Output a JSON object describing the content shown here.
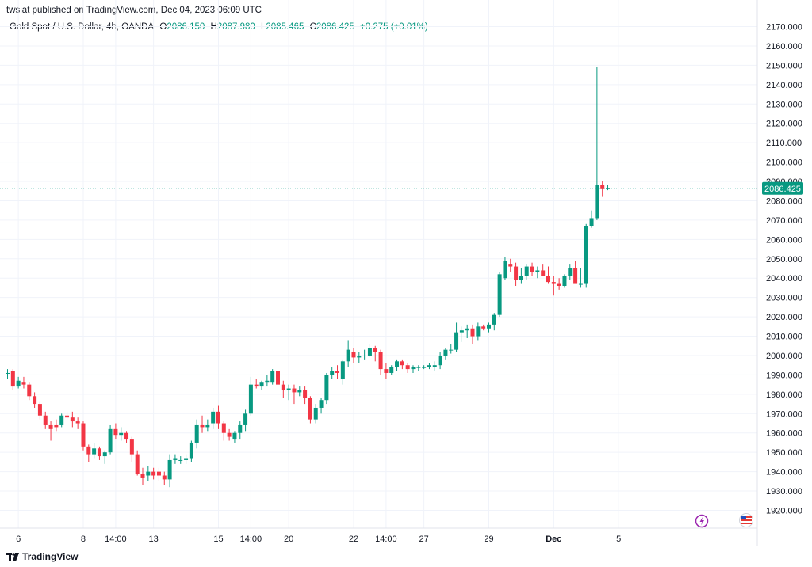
{
  "header": {
    "published": "twsiat published on TradingView.com, Dec 04, 2023 06:09 UTC"
  },
  "legend": {
    "symbol": "Gold Spot / U.S. Dollar, 4h, OANDA",
    "o_label": "O",
    "o_value": "2086.150",
    "h_label": "H",
    "h_value": "2087.980",
    "l_label": "L",
    "l_value": "2085.465",
    "c_label": "C",
    "c_value": "2086.425",
    "change": "+0.275 (+0.01%)"
  },
  "branding": {
    "name": "TradingView"
  },
  "colors": {
    "up": "#089981",
    "down": "#f23645",
    "grid": "#f0f3fa",
    "axis_text": "#131722"
  },
  "icons": [
    "lightning-event-icon",
    "us-flag-event-icon"
  ],
  "chart_data": {
    "type": "candlestick",
    "ylim": [
      1912,
      2177
    ],
    "y_ticks": [
      "2170.000",
      "2160.000",
      "2150.000",
      "2140.000",
      "2130.000",
      "2120.000",
      "2110.000",
      "2100.000",
      "2090.000",
      "2080.000",
      "2070.000",
      "2060.000",
      "2050.000",
      "2040.000",
      "2030.000",
      "2020.000",
      "2010.000",
      "2000.000",
      "1990.000",
      "1980.000",
      "1970.000",
      "1960.000",
      "1950.000",
      "1940.000",
      "1930.000",
      "1920.000"
    ],
    "x_ticks": [
      {
        "label": "6",
        "index": 2
      },
      {
        "label": "8",
        "index": 14
      },
      {
        "label": "14:00",
        "index": 20
      },
      {
        "label": "13",
        "index": 27
      },
      {
        "label": "15",
        "index": 39
      },
      {
        "label": "14:00",
        "index": 45
      },
      {
        "label": "20",
        "index": 52
      },
      {
        "label": "22",
        "index": 64
      },
      {
        "label": "14:00",
        "index": 70
      },
      {
        "label": "27",
        "index": 77
      },
      {
        "label": "29",
        "index": 89
      },
      {
        "label": "Dec",
        "index": 101
      },
      {
        "label": "5",
        "index": 113
      }
    ],
    "last_price": "2086.425",
    "candles": [
      {
        "o": 1991,
        "h": 1993,
        "l": 1988,
        "c": 1991
      },
      {
        "o": 1992,
        "h": 1993,
        "l": 1982,
        "c": 1984
      },
      {
        "o": 1984,
        "h": 1989,
        "l": 1983,
        "c": 1987
      },
      {
        "o": 1986,
        "h": 1989,
        "l": 1983,
        "c": 1985
      },
      {
        "o": 1985,
        "h": 1986,
        "l": 1977,
        "c": 1979
      },
      {
        "o": 1979,
        "h": 1981,
        "l": 1973,
        "c": 1975
      },
      {
        "o": 1975,
        "h": 1976,
        "l": 1967,
        "c": 1969
      },
      {
        "o": 1969,
        "h": 1971,
        "l": 1962,
        "c": 1964
      },
      {
        "o": 1964,
        "h": 1966,
        "l": 1956,
        "c": 1962
      },
      {
        "o": 1964,
        "h": 1967,
        "l": 1961,
        "c": 1963
      },
      {
        "o": 1964,
        "h": 1970,
        "l": 1963,
        "c": 1969
      },
      {
        "o": 1969,
        "h": 1971,
        "l": 1967,
        "c": 1968
      },
      {
        "o": 1968,
        "h": 1971,
        "l": 1963,
        "c": 1966
      },
      {
        "o": 1966,
        "h": 1968,
        "l": 1962,
        "c": 1965
      },
      {
        "o": 1965,
        "h": 1966,
        "l": 1951,
        "c": 1953
      },
      {
        "o": 1953,
        "h": 1954,
        "l": 1945,
        "c": 1949
      },
      {
        "o": 1949,
        "h": 1955,
        "l": 1947,
        "c": 1952
      },
      {
        "o": 1952,
        "h": 1953,
        "l": 1946,
        "c": 1948
      },
      {
        "o": 1948,
        "h": 1951,
        "l": 1944,
        "c": 1950
      },
      {
        "o": 1950,
        "h": 1964,
        "l": 1949,
        "c": 1962
      },
      {
        "o": 1962,
        "h": 1965,
        "l": 1957,
        "c": 1959
      },
      {
        "o": 1959,
        "h": 1963,
        "l": 1956,
        "c": 1960
      },
      {
        "o": 1960,
        "h": 1961,
        "l": 1955,
        "c": 1957
      },
      {
        "o": 1957,
        "h": 1958,
        "l": 1945,
        "c": 1949
      },
      {
        "o": 1949,
        "h": 1951,
        "l": 1938,
        "c": 1939
      },
      {
        "o": 1939,
        "h": 1942,
        "l": 1933,
        "c": 1937
      },
      {
        "o": 1938,
        "h": 1943,
        "l": 1935,
        "c": 1940
      },
      {
        "o": 1940,
        "h": 1942,
        "l": 1936,
        "c": 1938
      },
      {
        "o": 1940,
        "h": 1942,
        "l": 1935,
        "c": 1938
      },
      {
        "o": 1938,
        "h": 1940,
        "l": 1933,
        "c": 1936
      },
      {
        "o": 1936,
        "h": 1949,
        "l": 1932,
        "c": 1946
      },
      {
        "o": 1946,
        "h": 1949,
        "l": 1944,
        "c": 1947
      },
      {
        "o": 1946,
        "h": 1948,
        "l": 1944,
        "c": 1946
      },
      {
        "o": 1946,
        "h": 1949,
        "l": 1944,
        "c": 1947
      },
      {
        "o": 1947,
        "h": 1956,
        "l": 1945,
        "c": 1955
      },
      {
        "o": 1955,
        "h": 1967,
        "l": 1952,
        "c": 1964
      },
      {
        "o": 1964,
        "h": 1969,
        "l": 1960,
        "c": 1963
      },
      {
        "o": 1963,
        "h": 1967,
        "l": 1961,
        "c": 1964
      },
      {
        "o": 1965,
        "h": 1973,
        "l": 1962,
        "c": 1971
      },
      {
        "o": 1971,
        "h": 1974,
        "l": 1962,
        "c": 1965
      },
      {
        "o": 1965,
        "h": 1966,
        "l": 1956,
        "c": 1960
      },
      {
        "o": 1960,
        "h": 1962,
        "l": 1956,
        "c": 1958
      },
      {
        "o": 1957,
        "h": 1961,
        "l": 1955,
        "c": 1960
      },
      {
        "o": 1960,
        "h": 1966,
        "l": 1957,
        "c": 1964
      },
      {
        "o": 1964,
        "h": 1972,
        "l": 1961,
        "c": 1970
      },
      {
        "o": 1970,
        "h": 1989,
        "l": 1969,
        "c": 1985
      },
      {
        "o": 1985,
        "h": 1988,
        "l": 1983,
        "c": 1984
      },
      {
        "o": 1984,
        "h": 1987,
        "l": 1982,
        "c": 1986
      },
      {
        "o": 1986,
        "h": 1990,
        "l": 1984,
        "c": 1987
      },
      {
        "o": 1986,
        "h": 1993,
        "l": 1985,
        "c": 1992
      },
      {
        "o": 1992,
        "h": 1994,
        "l": 1983,
        "c": 1985
      },
      {
        "o": 1985,
        "h": 1987,
        "l": 1978,
        "c": 1982
      },
      {
        "o": 1982,
        "h": 1985,
        "l": 1977,
        "c": 1983
      },
      {
        "o": 1983,
        "h": 1985,
        "l": 1975,
        "c": 1981
      },
      {
        "o": 1981,
        "h": 1984,
        "l": 1979,
        "c": 1982
      },
      {
        "o": 1982,
        "h": 1984,
        "l": 1975,
        "c": 1978
      },
      {
        "o": 1978,
        "h": 1979,
        "l": 1965,
        "c": 1967
      },
      {
        "o": 1967,
        "h": 1975,
        "l": 1965,
        "c": 1973
      },
      {
        "o": 1973,
        "h": 1978,
        "l": 1970,
        "c": 1977
      },
      {
        "o": 1977,
        "h": 1991,
        "l": 1975,
        "c": 1990
      },
      {
        "o": 1990,
        "h": 1994,
        "l": 1988,
        "c": 1992
      },
      {
        "o": 1992,
        "h": 1995,
        "l": 1988,
        "c": 1991
      },
      {
        "o": 1988,
        "h": 1998,
        "l": 1985,
        "c": 1997
      },
      {
        "o": 1997,
        "h": 2008,
        "l": 1994,
        "c": 2003
      },
      {
        "o": 2002,
        "h": 2004,
        "l": 1996,
        "c": 1999
      },
      {
        "o": 1999,
        "h": 2002,
        "l": 1996,
        "c": 2000
      },
      {
        "o": 2000,
        "h": 2003,
        "l": 1998,
        "c": 2000
      },
      {
        "o": 2000,
        "h": 2006,
        "l": 1999,
        "c": 2004
      },
      {
        "o": 2004,
        "h": 2005,
        "l": 1997,
        "c": 2002
      },
      {
        "o": 2002,
        "h": 2003,
        "l": 1990,
        "c": 1993
      },
      {
        "o": 1993,
        "h": 1996,
        "l": 1988,
        "c": 1991
      },
      {
        "o": 1991,
        "h": 1995,
        "l": 1990,
        "c": 1994
      },
      {
        "o": 1994,
        "h": 1998,
        "l": 1992,
        "c": 1997
      },
      {
        "o": 1997,
        "h": 1998,
        "l": 1993,
        "c": 1995
      },
      {
        "o": 1995,
        "h": 1996,
        "l": 1991,
        "c": 1993
      },
      {
        "o": 1993,
        "h": 1995,
        "l": 1991,
        "c": 1994
      },
      {
        "o": 1994,
        "h": 1995,
        "l": 1992,
        "c": 1994
      },
      {
        "o": 1994,
        "h": 1995,
        "l": 1993,
        "c": 1994
      },
      {
        "o": 1994,
        "h": 1996,
        "l": 1993,
        "c": 1995
      },
      {
        "o": 1994,
        "h": 1997,
        "l": 1992,
        "c": 1995
      },
      {
        "o": 1995,
        "h": 2002,
        "l": 1993,
        "c": 2000
      },
      {
        "o": 2000,
        "h": 2004,
        "l": 1998,
        "c": 2003
      },
      {
        "o": 2003,
        "h": 2006,
        "l": 2001,
        "c": 2003
      },
      {
        "o": 2003,
        "h": 2017,
        "l": 2002,
        "c": 2012
      },
      {
        "o": 2012,
        "h": 2015,
        "l": 2007,
        "c": 2013
      },
      {
        "o": 2013,
        "h": 2016,
        "l": 2009,
        "c": 2014
      },
      {
        "o": 2014,
        "h": 2016,
        "l": 2006,
        "c": 2010
      },
      {
        "o": 2010,
        "h": 2017,
        "l": 2008,
        "c": 2015
      },
      {
        "o": 2015,
        "h": 2016,
        "l": 2013,
        "c": 2014
      },
      {
        "o": 2014,
        "h": 2017,
        "l": 2012,
        "c": 2016
      },
      {
        "o": 2016,
        "h": 2022,
        "l": 2013,
        "c": 2021
      },
      {
        "o": 2021,
        "h": 2043,
        "l": 2020,
        "c": 2042
      },
      {
        "o": 2040,
        "h": 2051,
        "l": 2039,
        "c": 2049
      },
      {
        "o": 2047,
        "h": 2050,
        "l": 2043,
        "c": 2046
      },
      {
        "o": 2046,
        "h": 2048,
        "l": 2036,
        "c": 2039
      },
      {
        "o": 2039,
        "h": 2045,
        "l": 2037,
        "c": 2041
      },
      {
        "o": 2041,
        "h": 2047,
        "l": 2039,
        "c": 2046
      },
      {
        "o": 2046,
        "h": 2048,
        "l": 2041,
        "c": 2043
      },
      {
        "o": 2043,
        "h": 2046,
        "l": 2040,
        "c": 2044
      },
      {
        "o": 2044,
        "h": 2047,
        "l": 2041,
        "c": 2041
      },
      {
        "o": 2041,
        "h": 2046,
        "l": 2037,
        "c": 2038
      },
      {
        "o": 2038,
        "h": 2041,
        "l": 2031,
        "c": 2037
      },
      {
        "o": 2037,
        "h": 2040,
        "l": 2034,
        "c": 2036
      },
      {
        "o": 2036,
        "h": 2042,
        "l": 2035,
        "c": 2041
      },
      {
        "o": 2041,
        "h": 2047,
        "l": 2039,
        "c": 2045
      },
      {
        "o": 2045,
        "h": 2049,
        "l": 2038,
        "c": 2037
      },
      {
        "o": 2037,
        "h": 2045,
        "l": 2035,
        "c": 2037
      },
      {
        "o": 2037,
        "h": 2068,
        "l": 2035,
        "c": 2067
      },
      {
        "o": 2067,
        "h": 2075,
        "l": 2066,
        "c": 2071
      },
      {
        "o": 2071,
        "h": 2149,
        "l": 2070,
        "c": 2088
      },
      {
        "o": 2088,
        "h": 2090,
        "l": 2082,
        "c": 2086
      },
      {
        "o": 2086.15,
        "h": 2087.98,
        "l": 2085.465,
        "c": 2086.425
      }
    ]
  }
}
